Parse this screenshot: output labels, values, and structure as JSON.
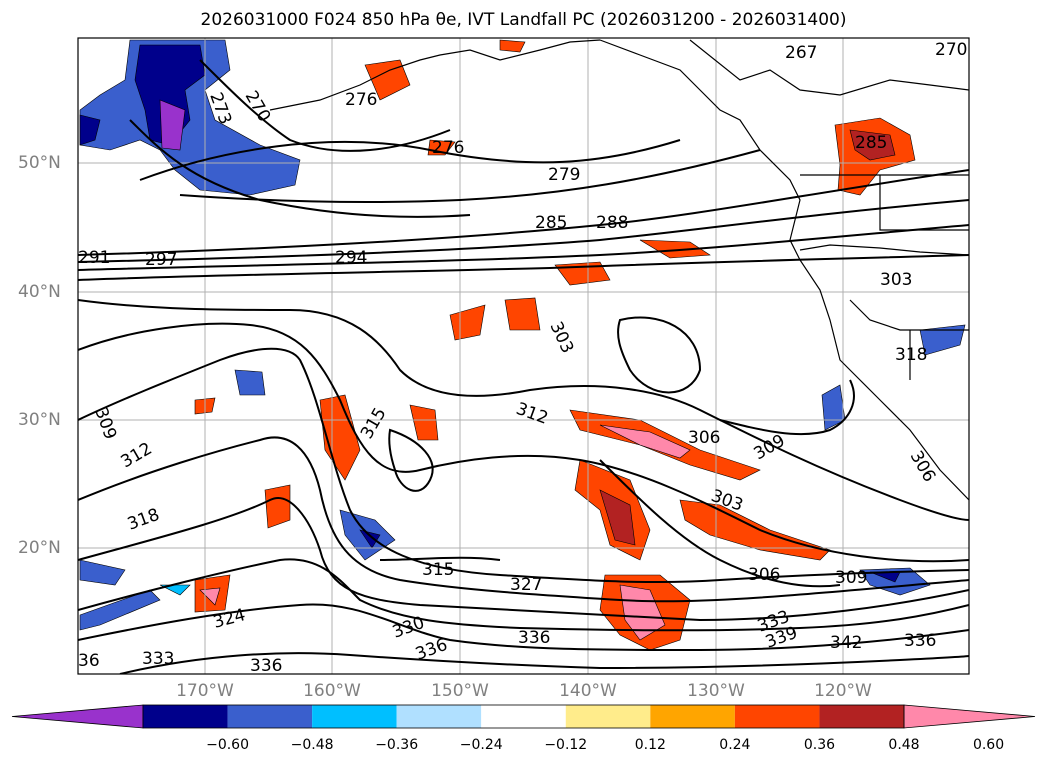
{
  "title": "2026031000 F024 850 hPa θe, IVT Landfall PC (2026031200 - 2026031400)",
  "lat_labels": [
    "50°N",
    "40°N",
    "30°N",
    "20°N"
  ],
  "lon_labels": [
    "170°W",
    "160°W",
    "150°W",
    "140°W",
    "130°W",
    "120°W"
  ],
  "colorbar": {
    "ticks": [
      "−0.60",
      "−0.48",
      "−0.36",
      "−0.24",
      "−0.12",
      "0.12",
      "0.24",
      "0.36",
      "0.48",
      "0.60"
    ],
    "colors": [
      "#9932cc",
      "#00008b",
      "#3a5fcd",
      "#00bfff",
      "#b0e0ff",
      "#ffffff",
      "#ffec8b",
      "#ffa500",
      "#ff4500",
      "#b22222",
      "#ff88aa"
    ],
    "extend": "both"
  },
  "contour_labels": [
    {
      "text": "273"
    },
    {
      "text": "270"
    },
    {
      "text": "276"
    },
    {
      "text": "276"
    },
    {
      "text": "279"
    },
    {
      "text": "267"
    },
    {
      "text": "270"
    },
    {
      "text": "285"
    },
    {
      "text": "288"
    },
    {
      "text": "291"
    },
    {
      "text": "297"
    },
    {
      "text": "294"
    },
    {
      "text": "303"
    },
    {
      "text": "303"
    },
    {
      "text": "309"
    },
    {
      "text": "312"
    },
    {
      "text": "315"
    },
    {
      "text": "312"
    },
    {
      "text": "306"
    },
    {
      "text": "309"
    },
    {
      "text": "303"
    },
    {
      "text": "318"
    },
    {
      "text": "315"
    },
    {
      "text": "327"
    },
    {
      "text": "306"
    },
    {
      "text": "309"
    },
    {
      "text": "324"
    },
    {
      "text": "330"
    },
    {
      "text": "333"
    },
    {
      "text": "339"
    },
    {
      "text": "336"
    },
    {
      "text": "336"
    },
    {
      "text": "336"
    },
    {
      "text": "333"
    },
    {
      "text": "342"
    },
    {
      "text": "336"
    },
    {
      "text": "36"
    },
    {
      "text": "318"
    },
    {
      "text": "306"
    },
    {
      "text": "285"
    }
  ]
}
